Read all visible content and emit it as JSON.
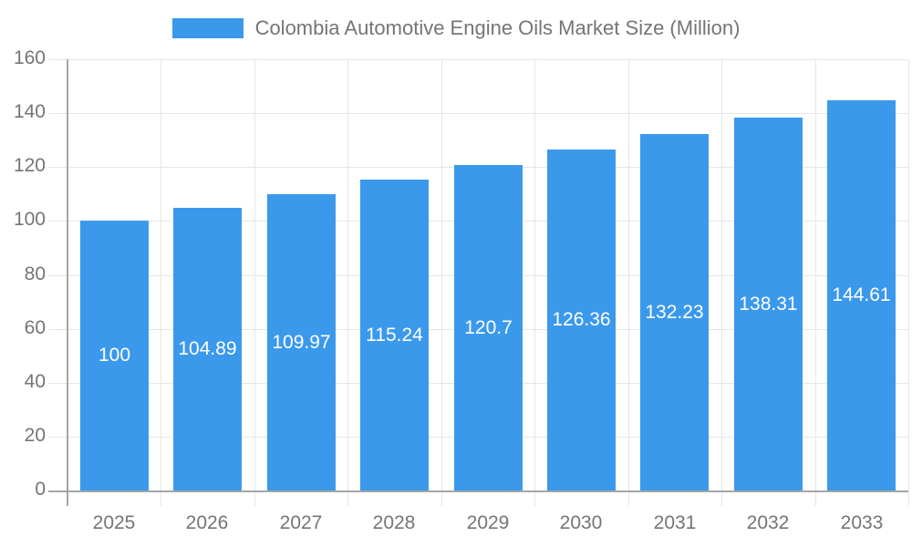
{
  "legend": {
    "label": "Colombia Automotive Engine Oils Market Size (Million)"
  },
  "chart_data": {
    "type": "bar",
    "title": "Colombia Automotive Engine Oils Market Size (Million)",
    "categories": [
      "2025",
      "2026",
      "2027",
      "2028",
      "2029",
      "2030",
      "2031",
      "2032",
      "2033"
    ],
    "values": [
      100,
      104.89,
      109.97,
      115.24,
      120.7,
      126.36,
      132.23,
      138.31,
      144.61
    ],
    "value_labels": [
      "100",
      "104.89",
      "109.97",
      "115.24",
      "120.7",
      "126.36",
      "132.23",
      "138.31",
      "144.61"
    ],
    "xlabel": "",
    "ylabel": "",
    "ylim": [
      0,
      160
    ],
    "yticks": [
      0,
      20,
      40,
      60,
      80,
      100,
      120,
      140,
      160
    ],
    "ytick_labels": [
      "0",
      "20",
      "40",
      "60",
      "80",
      "100",
      "120",
      "140",
      "160"
    ],
    "grid": true,
    "legend_position": "top",
    "bar_color": "#3B99EC",
    "value_label_color": "#FFFFFF",
    "axis_text_color": "#757575",
    "gridline_color": "#E6E6E6",
    "axis_line_color": "#A6A6A6"
  }
}
